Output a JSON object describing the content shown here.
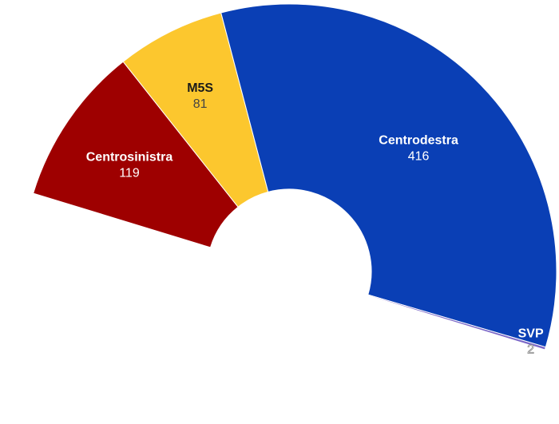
{
  "chart_data": {
    "type": "pie",
    "variant": "semicircle-donut",
    "title": "",
    "categories": [
      "Centrosinistra",
      "M5S",
      "Centrodestra",
      "SVP"
    ],
    "values": [
      119,
      81,
      416,
      2
    ],
    "value_labels": [
      "119",
      "81",
      "416",
      "2"
    ],
    "colors": [
      "#9e0000",
      "#fcc72e",
      "#0a3fb5",
      "#7b68c8"
    ],
    "legend": "none",
    "grid": false
  }
}
